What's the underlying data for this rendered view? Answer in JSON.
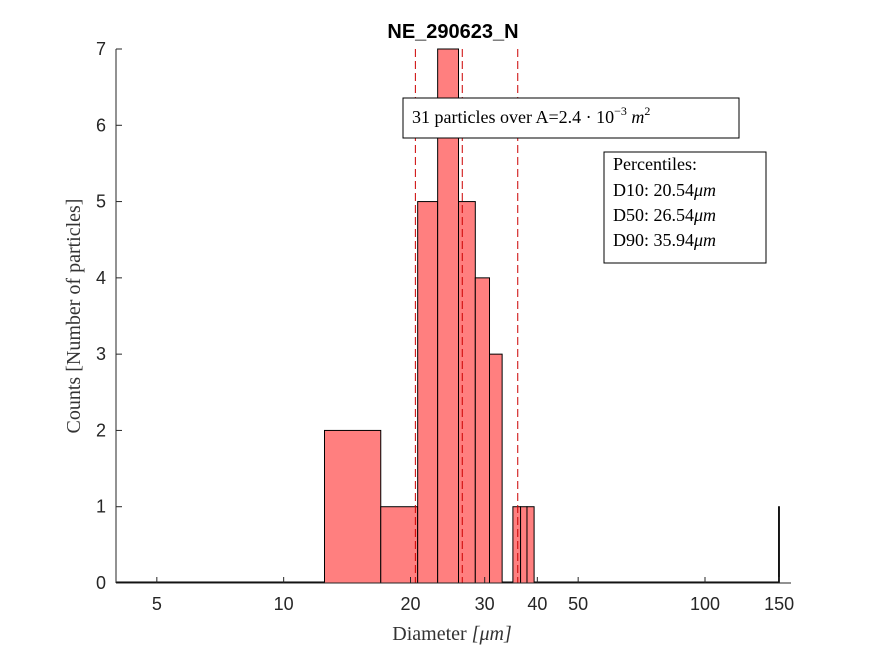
{
  "chart_data": {
    "type": "bar",
    "title": "NE_290623_N",
    "xlabel_text": "Diameter ",
    "xlabel_unit": "[μm]",
    "ylabel": "Counts [Number of particles]",
    "x_scale": "log",
    "xlim": [
      4,
      160
    ],
    "ylim": [
      0,
      7
    ],
    "x_ticks": [
      5,
      10,
      20,
      30,
      40,
      50,
      100,
      150
    ],
    "y_ticks": [
      0,
      1,
      2,
      3,
      4,
      5,
      6,
      7
    ],
    "bar_color": "#ff7f7f",
    "percentile_line_color": "#cc0000",
    "bins": [
      {
        "x0": 4.0,
        "x1": 12.5,
        "count": 0
      },
      {
        "x0": 12.5,
        "x1": 17.0,
        "count": 2
      },
      {
        "x0": 17.0,
        "x1": 20.8,
        "count": 1
      },
      {
        "x0": 20.8,
        "x1": 23.2,
        "count": 5
      },
      {
        "x0": 23.2,
        "x1": 26.0,
        "count": 7
      },
      {
        "x0": 26.0,
        "x1": 28.5,
        "count": 5
      },
      {
        "x0": 28.5,
        "x1": 30.8,
        "count": 4
      },
      {
        "x0": 30.8,
        "x1": 33.0,
        "count": 3
      },
      {
        "x0": 33.0,
        "x1": 35.0,
        "count": 0
      },
      {
        "x0": 35.0,
        "x1": 36.5,
        "count": 1
      },
      {
        "x0": 36.5,
        "x1": 37.8,
        "count": 1
      },
      {
        "x0": 37.8,
        "x1": 39.3,
        "count": 1
      },
      {
        "x0": 39.3,
        "x1": 149.5,
        "count": 0
      },
      {
        "x0": 149.5,
        "x1": 149.9,
        "count": 1
      }
    ],
    "percentiles": [
      {
        "name": "D10",
        "value": 20.54
      },
      {
        "name": "D50",
        "value": 26.54
      },
      {
        "name": "D90",
        "value": 35.94
      }
    ],
    "annotation_summary": {
      "prefix": "31 particles over A=2.4",
      "dot": "·",
      "base": "10",
      "exponent": "−3",
      "unit": "m",
      "unit_exp": "2"
    },
    "annotation_percentiles_title": "Percentiles:",
    "annotation_percentiles_unit": "μm"
  }
}
